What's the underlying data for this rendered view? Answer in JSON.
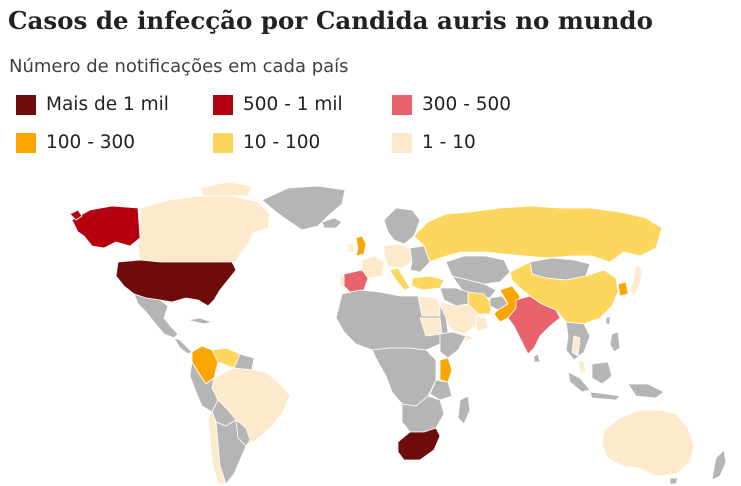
{
  "title": "Casos de infecção por Candida auris no mundo",
  "subtitle": "Número de notificações em cada país",
  "colors": {
    "mais_de_1_mil": "#6e0c0c",
    "500_1_mil": "#b5000f",
    "300_500": "#e8636b",
    "100_300": "#fba600",
    "10_100": "#fdd65e",
    "1_10": "#fde9cc",
    "no_data": "#b5b5b5"
  },
  "legend": [
    {
      "label": "Mais de 1 mil",
      "color": "#6e0c0c"
    },
    {
      "label": "500 - 1 mil",
      "color": "#b5000f"
    },
    {
      "label": "300 - 500",
      "color": "#e8636b"
    },
    {
      "label": "100 - 300",
      "color": "#fba600"
    },
    {
      "label": "10 - 100",
      "color": "#fdd65e"
    },
    {
      "label": "1 - 10",
      "color": "#fde9cc"
    }
  ]
}
